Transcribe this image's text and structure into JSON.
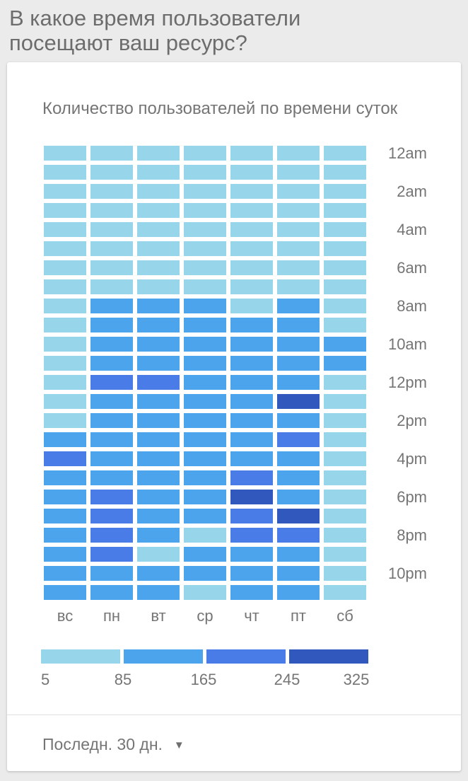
{
  "page": {
    "title": "В какое время пользователи посещают ваш ресурс?"
  },
  "chart": {
    "title": "Количество пользователей по времени суток"
  },
  "footer": {
    "date_range_label": "Последн. 30 дн.",
    "dropdown_icon": "triangle-down"
  },
  "colors": {
    "background": "#ebebeb",
    "card": "#ffffff",
    "header_text": "#6d6d6d",
    "label_text": "#757575",
    "divider": "#e0e0e0",
    "bucket_light": "#96d5ea",
    "bucket_medium": "#4ba4ec",
    "bucket_royal": "#4a7ce8",
    "bucket_dark": "#3158bc"
  },
  "chart_data": {
    "type": "heatmap",
    "title": "Количество пользователей по времени суток",
    "x_categories": [
      "вс",
      "пн",
      "вт",
      "ср",
      "чт",
      "пт",
      "сб"
    ],
    "y_ticks": [
      {
        "label": "12am",
        "row": 0
      },
      {
        "label": "2am",
        "row": 2
      },
      {
        "label": "4am",
        "row": 4
      },
      {
        "label": "6am",
        "row": 6
      },
      {
        "label": "8am",
        "row": 8
      },
      {
        "label": "10am",
        "row": 10
      },
      {
        "label": "12pm",
        "row": 12
      },
      {
        "label": "2pm",
        "row": 14
      },
      {
        "label": "4pm",
        "row": 16
      },
      {
        "label": "6pm",
        "row": 18
      },
      {
        "label": "8pm",
        "row": 20
      },
      {
        "label": "10pm",
        "row": 22
      }
    ],
    "rows": 24,
    "cols": 7,
    "legend": {
      "tick_labels": [
        "5",
        "85",
        "165",
        "245",
        "325"
      ],
      "bucket_ranges": [
        "5-85",
        "85-165",
        "165-245",
        "245-325"
      ],
      "colors": [
        "#96d5ea",
        "#4ba4ec",
        "#4a7ce8",
        "#3158bc"
      ],
      "position": "bottom"
    },
    "values_bucket": [
      [
        0,
        0,
        0,
        0,
        0,
        0,
        0
      ],
      [
        0,
        0,
        0,
        0,
        0,
        0,
        0
      ],
      [
        0,
        0,
        0,
        0,
        0,
        0,
        0
      ],
      [
        0,
        0,
        0,
        0,
        0,
        0,
        0
      ],
      [
        0,
        0,
        0,
        0,
        0,
        0,
        0
      ],
      [
        0,
        0,
        0,
        0,
        0,
        0,
        0
      ],
      [
        0,
        0,
        0,
        0,
        0,
        0,
        0
      ],
      [
        0,
        0,
        0,
        0,
        0,
        0,
        0
      ],
      [
        0,
        1,
        1,
        1,
        0,
        1,
        0
      ],
      [
        0,
        1,
        1,
        1,
        1,
        1,
        0
      ],
      [
        0,
        1,
        1,
        1,
        1,
        1,
        1
      ],
      [
        0,
        1,
        1,
        1,
        1,
        1,
        1
      ],
      [
        0,
        2,
        2,
        1,
        1,
        1,
        0
      ],
      [
        0,
        1,
        1,
        1,
        1,
        3,
        0
      ],
      [
        0,
        1,
        1,
        1,
        1,
        1,
        0
      ],
      [
        1,
        1,
        1,
        1,
        1,
        2,
        0
      ],
      [
        2,
        1,
        1,
        1,
        1,
        1,
        0
      ],
      [
        1,
        1,
        1,
        1,
        2,
        1,
        0
      ],
      [
        1,
        2,
        1,
        1,
        3,
        1,
        0
      ],
      [
        1,
        2,
        1,
        1,
        2,
        3,
        0
      ],
      [
        1,
        2,
        1,
        0,
        2,
        2,
        0
      ],
      [
        1,
        2,
        0,
        1,
        1,
        1,
        0
      ],
      [
        1,
        1,
        1,
        1,
        1,
        1,
        0
      ],
      [
        1,
        1,
        1,
        0,
        1,
        1,
        0
      ]
    ]
  }
}
